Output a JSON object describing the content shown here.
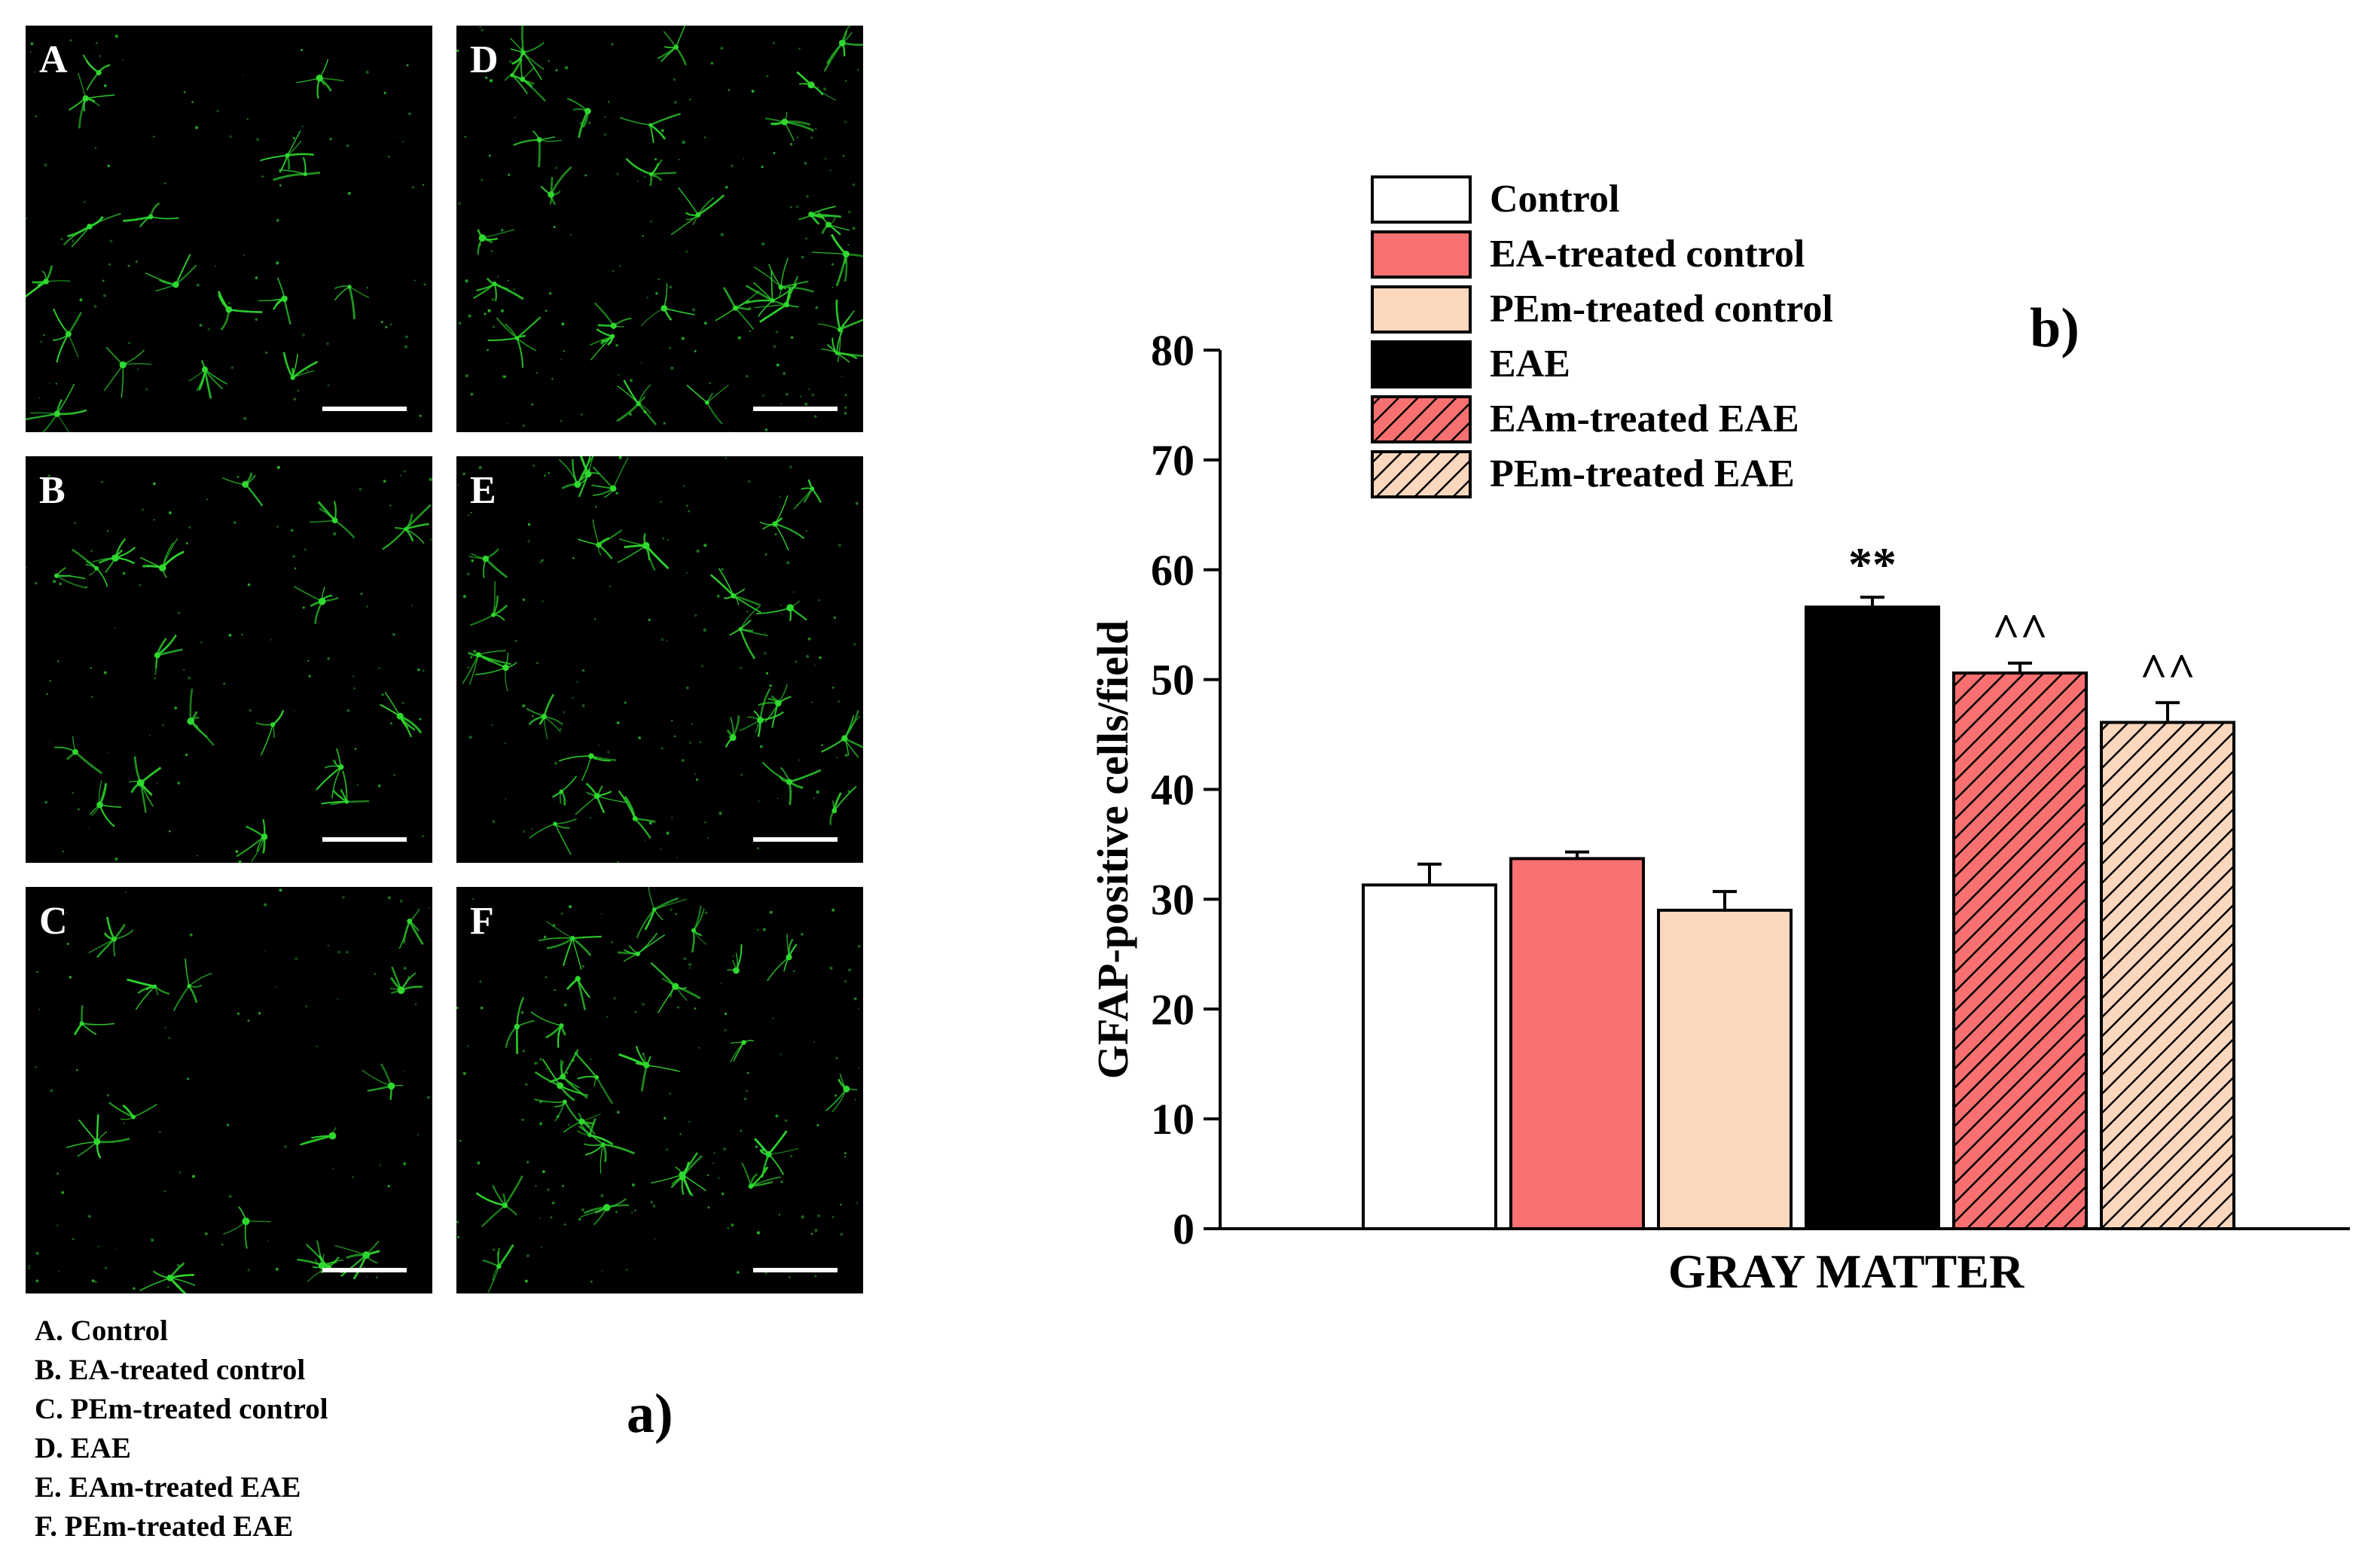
{
  "panel_a": {
    "label": "a)",
    "panels": [
      {
        "letter": "A",
        "density": 0.55
      },
      {
        "letter": "D",
        "density": 1.0
      },
      {
        "letter": "B",
        "density": 0.6
      },
      {
        "letter": "E",
        "density": 0.85
      },
      {
        "letter": "C",
        "density": 0.5
      },
      {
        "letter": "F",
        "density": 0.9
      }
    ],
    "captions": [
      "A. Control",
      "B. EA-treated control",
      "C. PEm-treated control",
      "D. EAE",
      "E. EAm-treated EAE",
      "F. PEm-treated EAE"
    ],
    "fluorescence_color": "#2fd82f"
  },
  "panel_b": {
    "label": "b)"
  },
  "chart_data": {
    "type": "bar",
    "title": "",
    "xlabel": "GRAY MATTER",
    "ylabel": "GFAP-positive cells/field",
    "ylim": [
      0,
      80
    ],
    "yticks": [
      0,
      10,
      20,
      30,
      40,
      50,
      60,
      70,
      80
    ],
    "grid": false,
    "legend_position": "top",
    "series": [
      {
        "name": "Control",
        "value": 31.3,
        "error": 1.9,
        "color": "#ffffff",
        "hatch": false,
        "annotation": ""
      },
      {
        "name": "EA-treated control",
        "value": 33.7,
        "error": 0.6,
        "color": "#f87070",
        "hatch": false,
        "annotation": ""
      },
      {
        "name": "PEm-treated control",
        "value": 29.0,
        "error": 1.7,
        "color": "#fad7bd",
        "hatch": false,
        "annotation": ""
      },
      {
        "name": "EAE",
        "value": 56.6,
        "error": 0.9,
        "color": "#000000",
        "hatch": false,
        "annotation": "**"
      },
      {
        "name": "EAm-treated EAE",
        "value": 50.6,
        "error": 0.9,
        "color": "#f87070",
        "hatch": true,
        "annotation": "^^"
      },
      {
        "name": "PEm-treated EAE",
        "value": 46.1,
        "error": 1.8,
        "color": "#fad7bd",
        "hatch": true,
        "annotation": "^^"
      }
    ]
  }
}
